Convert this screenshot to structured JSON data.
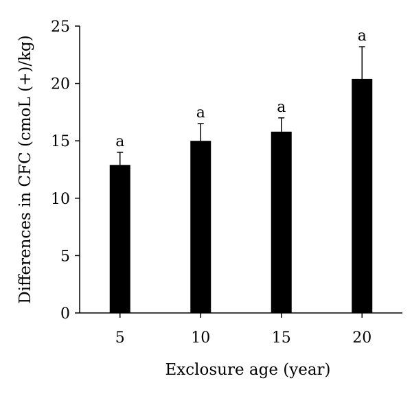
{
  "chart_data": {
    "type": "bar",
    "title": "",
    "xlabel": "Exclosure age (year)",
    "ylabel": "Differences in CFC (cmoL (+)/kg)",
    "categories": [
      "5",
      "10",
      "15",
      "20"
    ],
    "values": [
      12.9,
      15.0,
      15.8,
      20.4
    ],
    "errors": [
      1.1,
      1.5,
      1.2,
      2.8
    ],
    "significance_labels": [
      "a",
      "a",
      "a",
      "a"
    ],
    "ylim": [
      0,
      25
    ],
    "yticks": [
      "0",
      "5",
      "10",
      "15",
      "20",
      "25"
    ],
    "grid": false,
    "legend": "none",
    "bar_color": "#000000"
  }
}
